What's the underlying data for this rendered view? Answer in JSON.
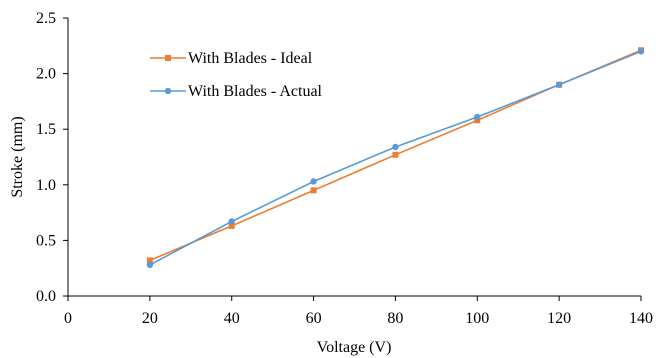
{
  "chart_data": {
    "type": "line",
    "title": "",
    "xlabel": "Voltage (V)",
    "ylabel": "Stroke (mm)",
    "xlim": [
      0,
      140
    ],
    "ylim": [
      0,
      2.5
    ],
    "x_ticks": [
      0,
      20,
      40,
      60,
      80,
      100,
      120,
      140
    ],
    "x_tick_labels": [
      "0",
      "20",
      "40",
      "60",
      "80",
      "100",
      "120",
      "140"
    ],
    "y_ticks": [
      0,
      0.5,
      1.0,
      1.5,
      2.0,
      2.5
    ],
    "y_tick_labels": [
      "0.0",
      "0.5",
      "1.0",
      "1.5",
      "2.0",
      "2.5"
    ],
    "grid": false,
    "legend_position": "top-left",
    "series": [
      {
        "name": "With Blades - Ideal",
        "color": "#ED7D31",
        "marker": "square",
        "x": [
          20,
          40,
          60,
          80,
          100,
          120,
          140
        ],
        "y": [
          0.32,
          0.63,
          0.95,
          1.27,
          1.58,
          1.9,
          2.21
        ]
      },
      {
        "name": "With Blades - Actual",
        "color": "#5B9BD5",
        "marker": "circle",
        "x": [
          20,
          40,
          60,
          80,
          100,
          120,
          140
        ],
        "y": [
          0.28,
          0.67,
          1.03,
          1.34,
          1.61,
          1.9,
          2.2
        ]
      }
    ]
  }
}
